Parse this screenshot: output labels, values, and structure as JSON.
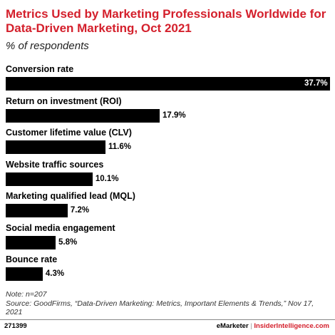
{
  "title": "Metrics Used by Marketing Professionals Worldwide for Data-Driven Marketing, Oct 2021",
  "subtitle": "% of respondents",
  "chart_data": {
    "type": "bar",
    "orientation": "horizontal",
    "title": "Metrics Used by Marketing Professionals Worldwide for Data-Driven Marketing, Oct 2021",
    "subtitle": "% of respondents",
    "categories": [
      "Conversion rate",
      "Return on investment (ROI)",
      "Customer lifetime value (CLV)",
      "Website traffic sources",
      "Marketing qualified lead (MQL)",
      "Social media engagement",
      "Bounce rate"
    ],
    "values": [
      37.7,
      17.9,
      11.6,
      10.1,
      7.2,
      5.8,
      4.3
    ],
    "value_labels": [
      "37.7%",
      "17.9%",
      "11.6%",
      "10.1%",
      "7.2%",
      "5.8%",
      "4.3%"
    ],
    "xlim": [
      0,
      37.7
    ],
    "bar_color": "#000000",
    "grid": false
  },
  "note": "Note: n=207",
  "source": "Source: GoodFirms, “Data-Driven Marketing: Metrics, Important Elements & Trends,” Nov 17, 2021",
  "footer": {
    "chart_id": "271399",
    "brand": "eMarketer",
    "separator": "|",
    "brand2": "InsiderIntelligence.com"
  },
  "colors": {
    "title": "#d4202c",
    "bar": "#000000"
  }
}
